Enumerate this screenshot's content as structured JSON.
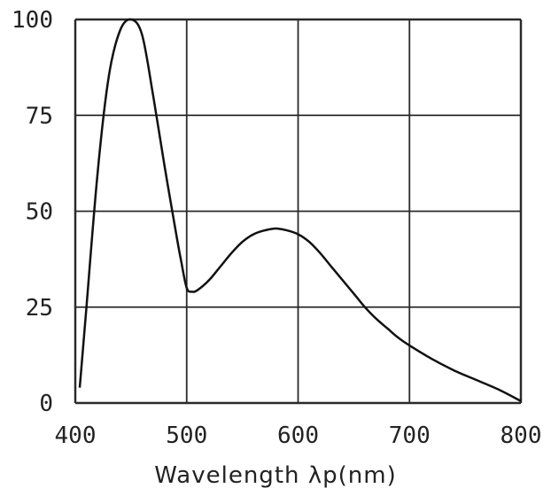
{
  "chart_data": {
    "type": "line",
    "title": "",
    "xlabel": "Wavelength λp(nm)",
    "ylabel": "",
    "xlim": [
      400,
      800
    ],
    "ylim": [
      0,
      100
    ],
    "x_ticks": [
      "400",
      "500",
      "600",
      "700",
      "800"
    ],
    "y_ticks": [
      "0",
      "25",
      "50",
      "75",
      "100"
    ],
    "grid": true,
    "legend": "none",
    "series": [
      {
        "color": "#111111",
        "points": [
          [
            404,
            4
          ],
          [
            410,
            25
          ],
          [
            420,
            60
          ],
          [
            430,
            85
          ],
          [
            440,
            97
          ],
          [
            450,
            100
          ],
          [
            460,
            96
          ],
          [
            470,
            80
          ],
          [
            480,
            62
          ],
          [
            490,
            45
          ],
          [
            495,
            37
          ],
          [
            500,
            30
          ],
          [
            505,
            29
          ],
          [
            510,
            29.5
          ],
          [
            520,
            32
          ],
          [
            530,
            35.5
          ],
          [
            540,
            39
          ],
          [
            550,
            42
          ],
          [
            560,
            44
          ],
          [
            570,
            45
          ],
          [
            580,
            45.5
          ],
          [
            590,
            45
          ],
          [
            600,
            44
          ],
          [
            610,
            42
          ],
          [
            620,
            39
          ],
          [
            630,
            35.5
          ],
          [
            640,
            32
          ],
          [
            650,
            28.5
          ],
          [
            660,
            25
          ],
          [
            670,
            22
          ],
          [
            680,
            19.5
          ],
          [
            690,
            17
          ],
          [
            700,
            15
          ],
          [
            720,
            11.5
          ],
          [
            740,
            8.5
          ],
          [
            760,
            6
          ],
          [
            780,
            3.5
          ],
          [
            800,
            0.5
          ]
        ]
      }
    ]
  }
}
